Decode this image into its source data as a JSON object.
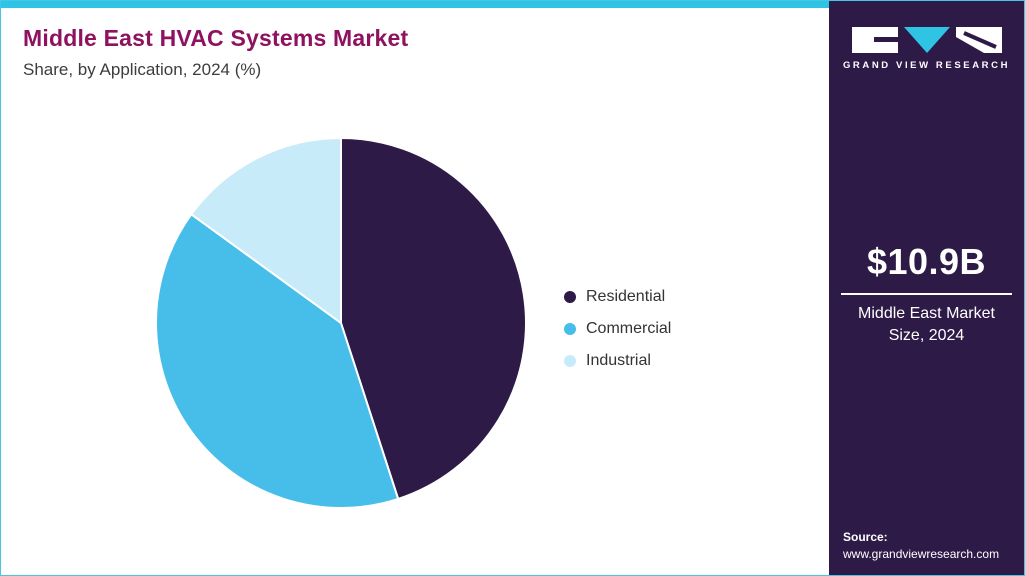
{
  "header": {
    "title": "Middle East HVAC Systems Market",
    "subtitle": "Share, by Application, 2024 (%)"
  },
  "chart_data": {
    "type": "pie",
    "title": "Middle East HVAC Systems Market Share, by Application, 2024 (%)",
    "labels": [
      "Residential",
      "Commercial",
      "Industrial"
    ],
    "values": [
      45,
      40,
      15
    ],
    "unit": "%",
    "colors": [
      "#2e1a47",
      "#47beea",
      "#c8ebfa"
    ],
    "start_angle_deg": -90,
    "direction": "clockwise",
    "legend_position": "right",
    "slice_border_color": "#ffffff"
  },
  "sidebar": {
    "logo_text": "GRAND VIEW RESEARCH",
    "market_size_value": "$10.9B",
    "market_size_label": "Middle East Market Size, 2024",
    "source_label": "Source:",
    "source_url": "www.grandviewresearch.com",
    "background_color": "#2e1a47"
  },
  "theme": {
    "accent_bar_color": "#2fc4e4",
    "title_color": "#8e125f",
    "border_color": "#43c6e8"
  }
}
